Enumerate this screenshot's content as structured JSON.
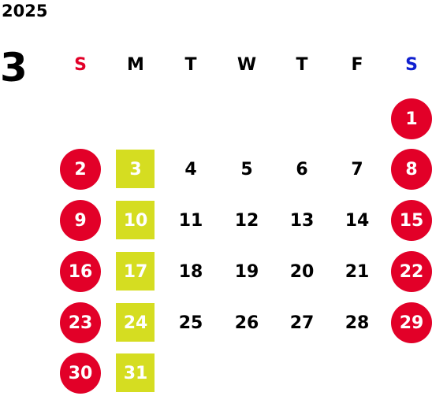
{
  "year": "2025",
  "month": "3",
  "colors": {
    "sunday_header": "#e20028",
    "saturday_header": "#1020d0",
    "holiday_circle": "#e20028",
    "closed_square": "#d5dd21"
  },
  "weekday_headers": [
    "S",
    "M",
    "T",
    "W",
    "T",
    "F",
    "S"
  ],
  "weeks": [
    [
      {
        "day": "",
        "mark": "none"
      },
      {
        "day": "",
        "mark": "none"
      },
      {
        "day": "",
        "mark": "none"
      },
      {
        "day": "",
        "mark": "none"
      },
      {
        "day": "",
        "mark": "none"
      },
      {
        "day": "",
        "mark": "none"
      },
      {
        "day": "1",
        "mark": "circle"
      }
    ],
    [
      {
        "day": "2",
        "mark": "circle"
      },
      {
        "day": "3",
        "mark": "square"
      },
      {
        "day": "4",
        "mark": "none"
      },
      {
        "day": "5",
        "mark": "none"
      },
      {
        "day": "6",
        "mark": "none"
      },
      {
        "day": "7",
        "mark": "none"
      },
      {
        "day": "8",
        "mark": "circle"
      }
    ],
    [
      {
        "day": "9",
        "mark": "circle"
      },
      {
        "day": "10",
        "mark": "square"
      },
      {
        "day": "11",
        "mark": "none"
      },
      {
        "day": "12",
        "mark": "none"
      },
      {
        "day": "13",
        "mark": "none"
      },
      {
        "day": "14",
        "mark": "none"
      },
      {
        "day": "15",
        "mark": "circle"
      }
    ],
    [
      {
        "day": "16",
        "mark": "circle"
      },
      {
        "day": "17",
        "mark": "square"
      },
      {
        "day": "18",
        "mark": "none"
      },
      {
        "day": "19",
        "mark": "none"
      },
      {
        "day": "20",
        "mark": "none"
      },
      {
        "day": "21",
        "mark": "none"
      },
      {
        "day": "22",
        "mark": "circle"
      }
    ],
    [
      {
        "day": "23",
        "mark": "circle"
      },
      {
        "day": "24",
        "mark": "square"
      },
      {
        "day": "25",
        "mark": "none"
      },
      {
        "day": "26",
        "mark": "none"
      },
      {
        "day": "27",
        "mark": "none"
      },
      {
        "day": "28",
        "mark": "none"
      },
      {
        "day": "29",
        "mark": "circle"
      }
    ],
    [
      {
        "day": "30",
        "mark": "circle"
      },
      {
        "day": "31",
        "mark": "square"
      },
      {
        "day": "",
        "mark": "none"
      },
      {
        "day": "",
        "mark": "none"
      },
      {
        "day": "",
        "mark": "none"
      },
      {
        "day": "",
        "mark": "none"
      },
      {
        "day": "",
        "mark": "none"
      }
    ]
  ]
}
